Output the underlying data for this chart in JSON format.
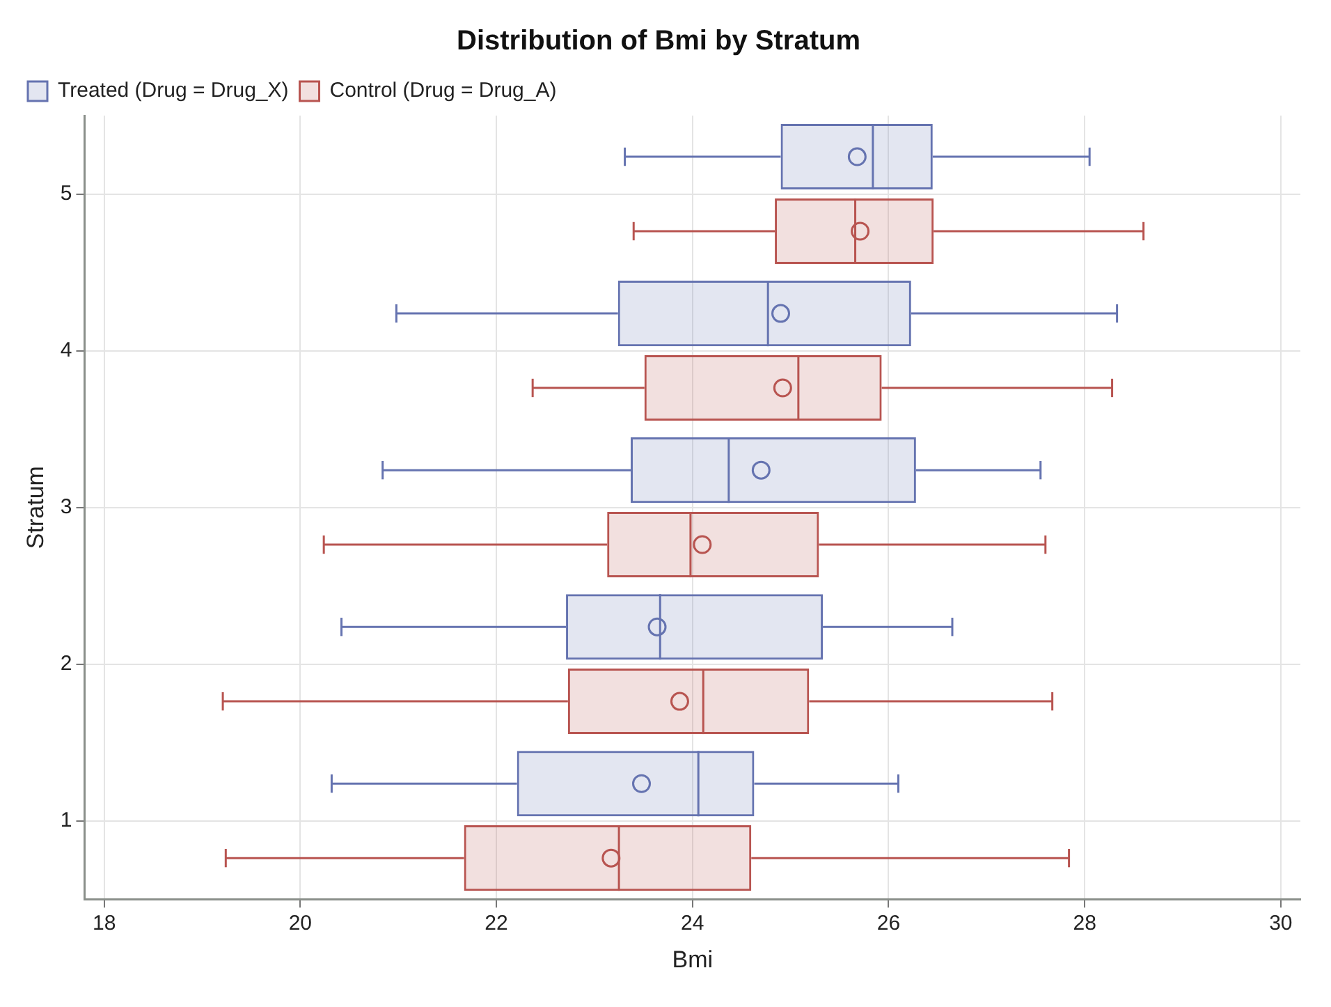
{
  "chart_data": {
    "type": "box",
    "title": "Distribution of Bmi by Stratum",
    "xlabel": "Bmi",
    "ylabel": "Stratum",
    "orientation": "horizontal",
    "categories": [
      "5",
      "4",
      "3",
      "2",
      "1"
    ],
    "series": [
      {
        "name": "Treated (Drug = Drug_X)",
        "color": "#6573b0",
        "boxes": [
          {
            "low": 23.31,
            "q1": 24.9,
            "median": 25.84,
            "q3": 26.45,
            "high": 28.05,
            "mean": 25.68
          },
          {
            "low": 20.98,
            "q1": 23.24,
            "median": 24.77,
            "q3": 26.23,
            "high": 28.33,
            "mean": 24.9
          },
          {
            "low": 20.84,
            "q1": 23.37,
            "median": 24.37,
            "q3": 26.28,
            "high": 27.55,
            "mean": 24.7
          },
          {
            "low": 20.42,
            "q1": 22.71,
            "median": 23.67,
            "q3": 25.33,
            "high": 26.65,
            "mean": 23.64
          },
          {
            "low": 20.32,
            "q1": 22.21,
            "median": 24.06,
            "q3": 24.63,
            "high": 26.1,
            "mean": 23.48
          }
        ]
      },
      {
        "name": "Control (Drug = Drug_A)",
        "color": "#b85450",
        "boxes": [
          {
            "low": 23.4,
            "q1": 24.84,
            "median": 25.66,
            "q3": 26.46,
            "high": 28.6,
            "mean": 25.71
          },
          {
            "low": 22.37,
            "q1": 23.51,
            "median": 25.08,
            "q3": 25.93,
            "high": 28.28,
            "mean": 24.92
          },
          {
            "low": 20.24,
            "q1": 23.13,
            "median": 23.98,
            "q3": 25.29,
            "high": 27.6,
            "mean": 24.1
          },
          {
            "low": 19.21,
            "q1": 22.73,
            "median": 24.11,
            "q3": 25.19,
            "high": 27.67,
            "mean": 23.87
          },
          {
            "low": 19.24,
            "q1": 21.67,
            "median": 23.25,
            "q3": 24.6,
            "high": 27.84,
            "mean": 23.17
          }
        ]
      }
    ],
    "xlim": [
      17.8,
      30.2
    ],
    "xticks": [
      18,
      20,
      22,
      24,
      26,
      28,
      30
    ],
    "grid": true,
    "legend": "top left"
  }
}
